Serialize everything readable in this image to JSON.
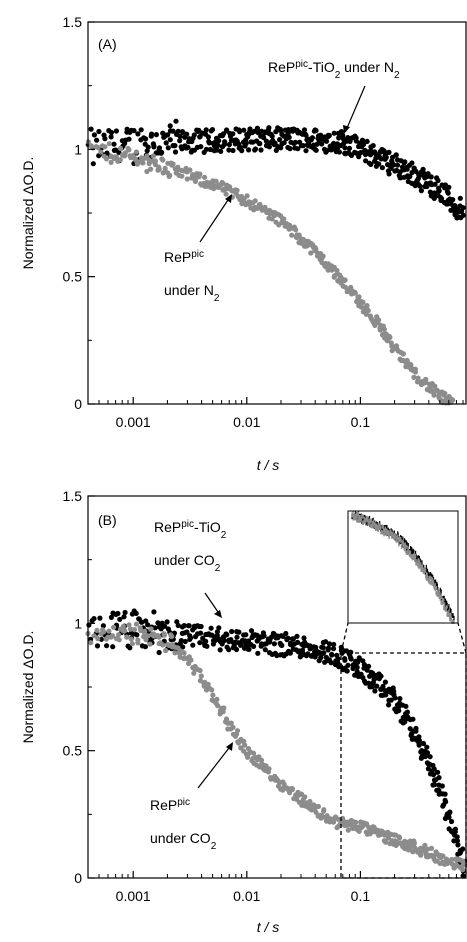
{
  "colors": {
    "black_series": "#000000",
    "gray_series": "#8c8c8c",
    "axis": "#000000",
    "background": "#ffffff"
  },
  "chart_data": [
    {
      "type": "scatter",
      "panel_label": "(A)",
      "xlabel": "t / s",
      "ylabel": "Normalized ΔO.D.",
      "xscale": "log",
      "xlim": [
        0.0004,
        0.85
      ],
      "ylim": [
        0,
        1.5
      ],
      "xticks": [
        0.001,
        0.01,
        0.1
      ],
      "xtick_labels": [
        "0.001",
        "0.01",
        "0.1"
      ],
      "yticks": [
        0,
        0.5,
        1,
        1.5
      ],
      "ytick_labels": [
        "0",
        "0.5",
        "1",
        "1.5"
      ],
      "series": [
        {
          "color": "#000000",
          "x": [
            0.0004,
            0.001,
            0.003,
            0.01,
            0.03,
            0.07,
            0.1,
            0.2,
            0.3,
            0.5,
            0.8
          ],
          "y": [
            1.0,
            1.02,
            1.03,
            1.04,
            1.04,
            1.03,
            1.0,
            0.94,
            0.9,
            0.84,
            0.75
          ]
        },
        {
          "color": "#8c8c8c",
          "x": [
            0.0004,
            0.001,
            0.002,
            0.004,
            0.006,
            0.01,
            0.02,
            0.04,
            0.07,
            0.1,
            0.15,
            0.2,
            0.3,
            0.5,
            0.65
          ],
          "y": [
            1.0,
            0.97,
            0.93,
            0.88,
            0.85,
            0.8,
            0.72,
            0.6,
            0.48,
            0.4,
            0.3,
            0.22,
            0.12,
            0.03,
            0.0
          ]
        }
      ],
      "annotations": [
        {
          "lines": [
            {
              "parts": [
                {
                  "t": "ReP"
                },
                {
                  "t": "pic",
                  "sup": true
                },
                {
                  "t": "-TiO"
                },
                {
                  "t": "2",
                  "sub": true
                },
                {
                  "t": " under N"
                },
                {
                  "t": "2",
                  "sub": true
                }
              ]
            }
          ]
        },
        {
          "lines": [
            {
              "parts": [
                {
                  "t": "ReP"
                },
                {
                  "t": "pic",
                  "sup": true
                }
              ]
            },
            {
              "parts": [
                {
                  "t": "under N"
                },
                {
                  "t": "2",
                  "sub": true
                }
              ]
            }
          ]
        }
      ]
    },
    {
      "type": "scatter",
      "panel_label": "(B)",
      "xlabel": "t / s",
      "ylabel": "Normalized ΔO.D.",
      "xscale": "log",
      "xlim": [
        0.0004,
        0.85
      ],
      "ylim": [
        0,
        1.5
      ],
      "xticks": [
        0.001,
        0.01,
        0.1
      ],
      "xtick_labels": [
        "0.001",
        "0.01",
        "0.1"
      ],
      "yticks": [
        0,
        0.5,
        1,
        1.5
      ],
      "ytick_labels": [
        "0",
        "0.5",
        "1",
        "1.5"
      ],
      "series": [
        {
          "color": "#000000",
          "x": [
            0.0004,
            0.001,
            0.003,
            0.01,
            0.03,
            0.06,
            0.1,
            0.2,
            0.3,
            0.5,
            0.7,
            0.85
          ],
          "y": [
            0.98,
            0.97,
            0.95,
            0.93,
            0.91,
            0.88,
            0.82,
            0.7,
            0.57,
            0.35,
            0.15,
            0.02
          ]
        },
        {
          "color": "#8c8c8c",
          "x": [
            0.0004,
            0.001,
            0.002,
            0.003,
            0.005,
            0.007,
            0.01,
            0.02,
            0.04,
            0.06,
            0.1,
            0.2,
            0.4,
            0.6,
            0.85
          ],
          "y": [
            0.96,
            0.96,
            0.93,
            0.86,
            0.72,
            0.6,
            0.5,
            0.37,
            0.27,
            0.22,
            0.2,
            0.15,
            0.1,
            0.06,
            0.05
          ]
        }
      ],
      "inset": {
        "x_range": [
          0.065,
          0.85
        ],
        "y_range": [
          0,
          0.9
        ]
      },
      "annotations": [
        {
          "lines": [
            {
              "parts": [
                {
                  "t": "ReP"
                },
                {
                  "t": "pic",
                  "sup": true
                },
                {
                  "t": "-TiO"
                },
                {
                  "t": "2",
                  "sub": true
                }
              ]
            },
            {
              "parts": [
                {
                  "t": "under CO"
                },
                {
                  "t": "2",
                  "sub": true
                }
              ]
            }
          ]
        },
        {
          "lines": [
            {
              "parts": [
                {
                  "t": "ReP"
                },
                {
                  "t": "pic",
                  "sup": true
                }
              ]
            },
            {
              "parts": [
                {
                  "t": "under CO"
                },
                {
                  "t": "2",
                  "sub": true
                }
              ]
            }
          ]
        }
      ]
    }
  ]
}
